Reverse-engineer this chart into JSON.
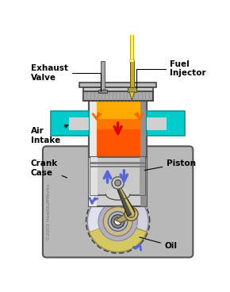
{
  "bg": "white",
  "labels": {
    "exhaust_valve": "Exhaust\nValve",
    "fuel_injector": "Fuel\nInjector",
    "air_intake": "Air\nIntake",
    "piston": "Piston",
    "crank_case": "Crank\nCase",
    "oil": "Oil",
    "copyright": "©2002 HowStuffWorks"
  },
  "c": {
    "gray_housing": "#b8b8b8",
    "gray_housing_edge": "#555555",
    "cyl_silver": "#d0d0d0",
    "cyl_light": "#e8e8e8",
    "cyl_dark": "#909090",
    "cyl_edge": "#555555",
    "orange_hot": "#ff7700",
    "orange_mid": "#ff5500",
    "orange_top": "#ffaa00",
    "red_center": "#dd1100",
    "cyan": "#00cccc",
    "cyan_dark": "#009999",
    "piston_silver": "#c8c8c8",
    "piston_light": "#e0e0e0",
    "piston_dark": "#a0a0a0",
    "ring_dark": "#808080",
    "pin_silver": "#cccccc",
    "rod_dark": "#555544",
    "rod_gold": "#ccbb66",
    "fly_light": "#d0d0e0",
    "fly_mid": "#b0b0c0",
    "fly_rim": "#888898",
    "fly_hub_gold": "#ccbb88",
    "fly_hub_dark": "#777766",
    "fly_inner": "#aaaacc",
    "fly_center": "#444444",
    "fly_white": "#ffffff",
    "oil_gold": "#d4c860",
    "oil_edge": "#998830",
    "arrow_blue": "#5566dd",
    "arrow_orange": "#ff6600",
    "arrow_red": "#dd0000",
    "valve_gray": "#909090",
    "valve_base": "#777777",
    "inj_gold": "#ccaa22",
    "inj_tip": "#ddcc44",
    "inj_tube": "#ffee88",
    "head_gray": "#aaaaaa",
    "head_edge": "#444444",
    "top_gray": "#cccccc",
    "top_wide": "#bbbbbb",
    "crank_gold": "#ccbb77",
    "crank_edge": "#665500"
  }
}
